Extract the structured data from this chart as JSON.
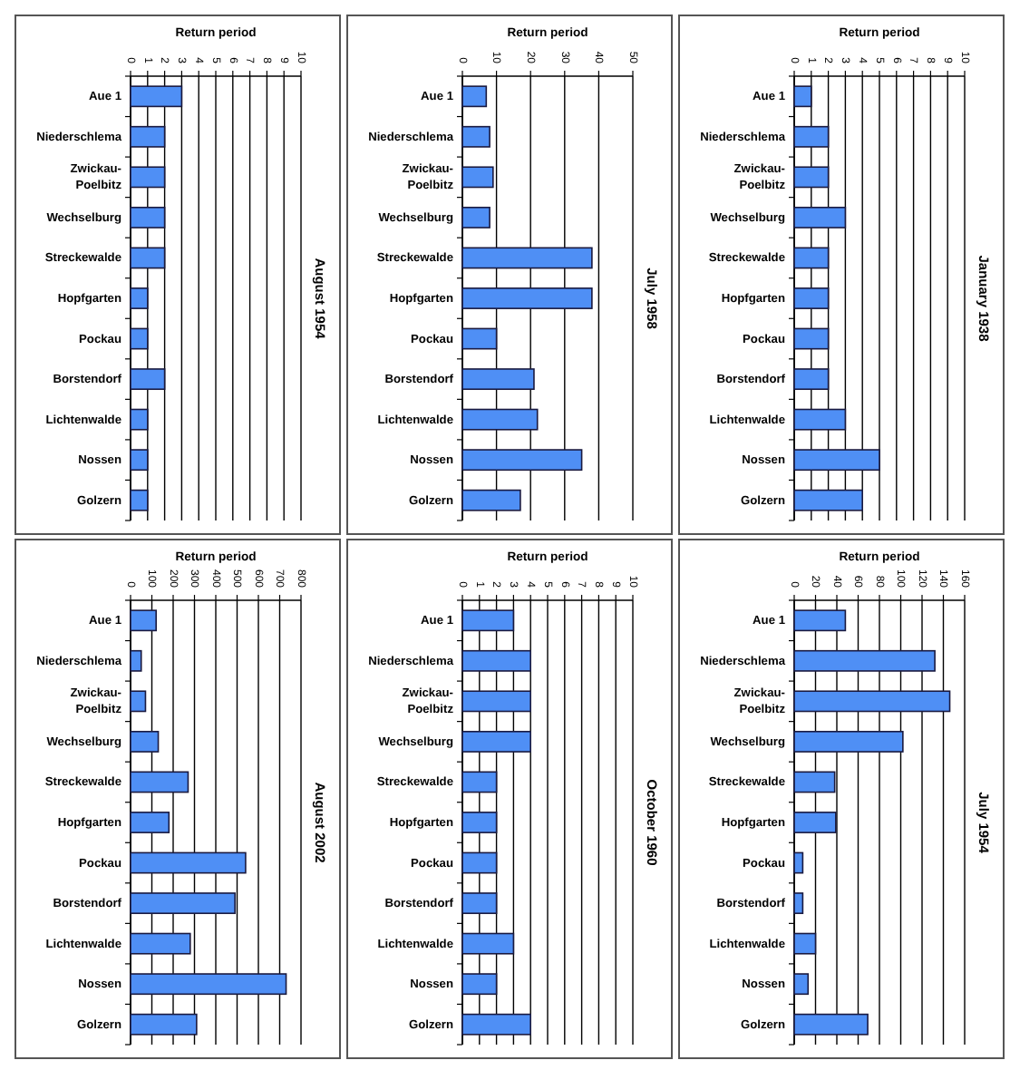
{
  "chart_data": [
    {
      "type": "bar",
      "orientation": "horizontal",
      "title": "August 1954",
      "xlabel": "Return period",
      "categories": [
        "Aue 1",
        "Niederschlema",
        "Zwickau-Poelbitz",
        "Wechselburg",
        "Streckewalde",
        "Hopfgarten",
        "Pockau",
        "Borstendorf",
        "Lichtenwalde",
        "Nossen",
        "Golzern"
      ],
      "values": [
        3,
        2,
        2,
        2,
        2,
        1,
        1,
        2,
        1,
        1,
        1
      ],
      "color": "#4f8ff5",
      "xlim": [
        0,
        10
      ],
      "xticks": [
        0,
        1,
        2,
        3,
        4,
        5,
        6,
        7,
        8,
        9,
        10
      ],
      "grid": "x"
    },
    {
      "type": "bar",
      "orientation": "horizontal",
      "title": "July 1958",
      "xlabel": "Return period",
      "categories": [
        "Aue 1",
        "Niederschlema",
        "Zwickau-Poelbitz",
        "Wechselburg",
        "Streckewalde",
        "Hopfgarten",
        "Pockau",
        "Borstendorf",
        "Lichtenwalde",
        "Nossen",
        "Golzern"
      ],
      "values": [
        7,
        8,
        9,
        8,
        38,
        38,
        10,
        21,
        22,
        35,
        17
      ],
      "color": "#4f8ff5",
      "xlim": [
        0,
        50
      ],
      "xticks": [
        0,
        10,
        20,
        30,
        40,
        50
      ],
      "grid": "x"
    },
    {
      "type": "bar",
      "orientation": "horizontal",
      "title": "January 1938",
      "xlabel": "Return period",
      "categories": [
        "Aue 1",
        "Niederschlema",
        "Zwickau-Poelbitz",
        "Wechselburg",
        "Streckewalde",
        "Hopfgarten",
        "Pockau",
        "Borstendorf",
        "Lichtenwalde",
        "Nossen",
        "Golzern"
      ],
      "values": [
        1,
        2,
        2,
        3,
        2,
        2,
        2,
        2,
        3,
        5,
        4
      ],
      "color": "#4f8ff5",
      "xlim": [
        0,
        10
      ],
      "xticks": [
        0,
        1,
        2,
        3,
        4,
        5,
        6,
        7,
        8,
        9,
        10
      ],
      "grid": "x"
    },
    {
      "type": "bar",
      "orientation": "horizontal",
      "title": "August 2002",
      "xlabel": "Return period",
      "categories": [
        "Aue 1",
        "Niederschlema",
        "Zwickau-Poelbitz",
        "Wechselburg",
        "Streckewalde",
        "Hopfgarten",
        "Pockau",
        "Borstendorf",
        "Lichtenwalde",
        "Nossen",
        "Golzern"
      ],
      "values": [
        120,
        50,
        70,
        130,
        270,
        180,
        540,
        490,
        280,
        730,
        310
      ],
      "color": "#4f8ff5",
      "xlim": [
        0,
        800
      ],
      "xticks": [
        0,
        100,
        200,
        300,
        400,
        500,
        600,
        700,
        800
      ],
      "grid": "x"
    },
    {
      "type": "bar",
      "orientation": "horizontal",
      "title": "October 1960",
      "xlabel": "Return period",
      "categories": [
        "Aue 1",
        "Niederschlema",
        "Zwickau-Poelbitz",
        "Wechselburg",
        "Streckewalde",
        "Hopfgarten",
        "Pockau",
        "Borstendorf",
        "Lichtenwalde",
        "Nossen",
        "Golzern"
      ],
      "values": [
        3,
        4,
        4,
        4,
        2,
        2,
        2,
        2,
        3,
        2,
        4
      ],
      "color": "#4f8ff5",
      "xlim": [
        0,
        10
      ],
      "xticks": [
        0,
        1,
        2,
        3,
        4,
        5,
        6,
        7,
        8,
        9,
        10
      ],
      "grid": "x"
    },
    {
      "type": "bar",
      "orientation": "horizontal",
      "title": "July 1954",
      "xlabel": "Return period",
      "categories": [
        "Aue 1",
        "Niederschlema",
        "Zwickau-Poelbitz",
        "Wechselburg",
        "Streckewalde",
        "Hopfgarten",
        "Pockau",
        "Borstendorf",
        "Lichtenwalde",
        "Nossen",
        "Golzern"
      ],
      "values": [
        48,
        132,
        146,
        102,
        38,
        39,
        8,
        8,
        20,
        13,
        69
      ],
      "color": "#4f8ff5",
      "xlim": [
        0,
        160
      ],
      "xticks": [
        0,
        20,
        40,
        60,
        80,
        100,
        120,
        140,
        160
      ],
      "grid": "x"
    }
  ]
}
